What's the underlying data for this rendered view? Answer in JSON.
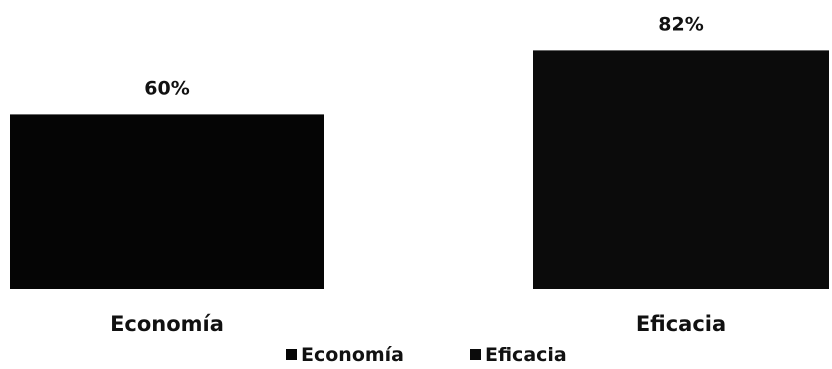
{
  "chart_data": {
    "type": "bar",
    "categories": [
      "Economía",
      "Eficacia"
    ],
    "values": [
      60,
      82
    ],
    "value_labels": [
      "60%",
      "82%"
    ],
    "series_names": [
      "Economía",
      "Eficacia"
    ],
    "colors": [
      "#050505",
      "#0b0b0b"
    ],
    "ylim": [
      0,
      100
    ],
    "grid": false,
    "legend_position": "bottom"
  }
}
